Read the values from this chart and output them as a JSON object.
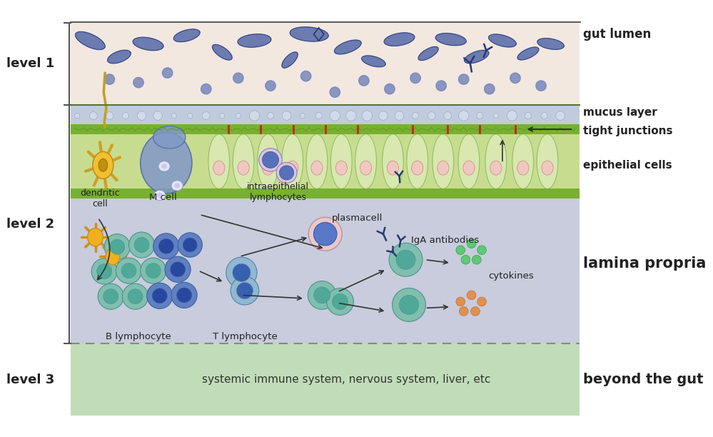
{
  "bg_color": "#ffffff",
  "gut_lumen_color": "#f2e8e0",
  "mucus_layer_color": "#c0ccdd",
  "epithelial_layer_color": "#c8dc90",
  "lamina_propria_color": "#c8ccdc",
  "level3_color": "#c0ddb8",
  "bacteria_color": "#5060a0",
  "gut_lumen_label": "gut lumen",
  "mucus_layer_label": "mucus layer",
  "tight_junctions_label": "tight junctions",
  "epithelial_cells_label": "epithelial cells",
  "lamina_propria_label": "lamina propria",
  "beyond_gut_label": "beyond the gut",
  "systemic_label": "systemic immune system, nervous system, liver, etc",
  "level1_label": "level 1",
  "level2_label": "level 2",
  "level3_label": "level 3",
  "dendritic_cell_label": "dendritic\ncell",
  "m_cell_label": "M cell",
  "intraepithelial_label": "intraepithelial\nlymphocytes",
  "iga_label": "IgA antibodies",
  "plasmacell_label": "plasmacell",
  "b_lymphocyte_label": "B lymphocyte",
  "t_lymphocyte_label": "T lymphocyte",
  "cytokines_label": "cytokines"
}
